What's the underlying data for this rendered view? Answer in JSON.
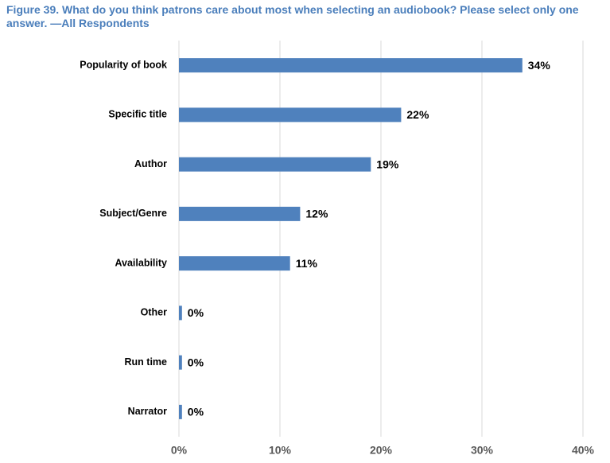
{
  "chart_data": {
    "type": "hbar",
    "title": "Figure 39. What do you think patrons care about most when selecting an audiobook? Please select only one answer. —All Respondents",
    "categories": [
      "Popularity of book",
      "Specific title",
      "Author",
      "Subject/Genre",
      "Availability",
      "Other",
      "Run time",
      "Narrator"
    ],
    "values": [
      34,
      22,
      19,
      12,
      11,
      0.3,
      0.3,
      0.3
    ],
    "value_labels": [
      "34%",
      "22%",
      "19%",
      "12%",
      "11%",
      "0%",
      "0%",
      "0%"
    ],
    "color": "#4f81bd",
    "xlim": [
      0,
      40
    ],
    "xticks": [
      {
        "value": 0,
        "label": "0%"
      },
      {
        "value": 10,
        "label": "10%"
      },
      {
        "value": 20,
        "label": "20%"
      },
      {
        "value": 30,
        "label": "30%"
      },
      {
        "value": 40,
        "label": "40%"
      }
    ],
    "grid": true
  }
}
